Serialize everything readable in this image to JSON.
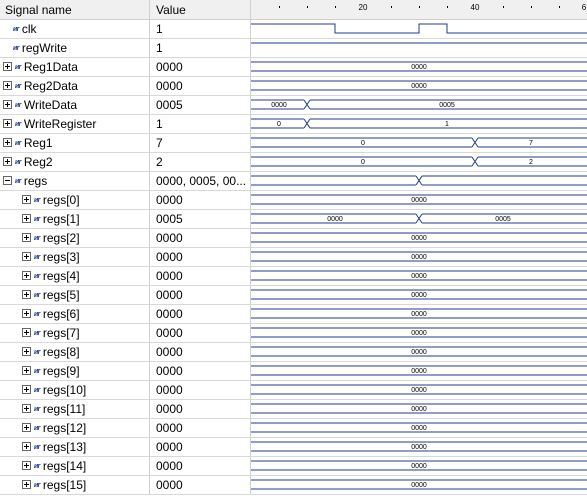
{
  "header": {
    "signal_name": "Signal name",
    "value": "Value"
  },
  "timeline": {
    "ticks": [
      "20",
      "40",
      "6"
    ]
  },
  "colors": {
    "wave": "#1f3b8f",
    "grid": "#d8d8d8"
  },
  "signals": [
    {
      "name": "clk",
      "value": "1",
      "expandable": false,
      "expanded": false,
      "indent": 0
    },
    {
      "name": "regWrite",
      "value": "1",
      "expandable": false,
      "expanded": false,
      "indent": 0
    },
    {
      "name": "Reg1Data",
      "value": "0000",
      "expandable": true,
      "expanded": false,
      "indent": 0
    },
    {
      "name": "Reg2Data",
      "value": "0000",
      "expandable": true,
      "expanded": false,
      "indent": 0
    },
    {
      "name": "WriteData",
      "value": "0005",
      "expandable": true,
      "expanded": false,
      "indent": 0
    },
    {
      "name": "WriteRegister",
      "value": "1",
      "expandable": true,
      "expanded": false,
      "indent": 0
    },
    {
      "name": "Reg1",
      "value": "7",
      "expandable": true,
      "expanded": false,
      "indent": 0
    },
    {
      "name": "Reg2",
      "value": "2",
      "expandable": true,
      "expanded": false,
      "indent": 0
    },
    {
      "name": "regs",
      "value": "0000, 0005, 00...",
      "expandable": true,
      "expanded": true,
      "indent": 0
    },
    {
      "name": "regs[0]",
      "value": "0000",
      "expandable": true,
      "expanded": false,
      "indent": 1
    },
    {
      "name": "regs[1]",
      "value": "0005",
      "expandable": true,
      "expanded": false,
      "indent": 1
    },
    {
      "name": "regs[2]",
      "value": "0000",
      "expandable": true,
      "expanded": false,
      "indent": 1
    },
    {
      "name": "regs[3]",
      "value": "0000",
      "expandable": true,
      "expanded": false,
      "indent": 1
    },
    {
      "name": "regs[4]",
      "value": "0000",
      "expandable": true,
      "expanded": false,
      "indent": 1
    },
    {
      "name": "regs[5]",
      "value": "0000",
      "expandable": true,
      "expanded": false,
      "indent": 1
    },
    {
      "name": "regs[6]",
      "value": "0000",
      "expandable": true,
      "expanded": false,
      "indent": 1
    },
    {
      "name": "regs[7]",
      "value": "0000",
      "expandable": true,
      "expanded": false,
      "indent": 1
    },
    {
      "name": "regs[8]",
      "value": "0000",
      "expandable": true,
      "expanded": false,
      "indent": 1
    },
    {
      "name": "regs[9]",
      "value": "0000",
      "expandable": true,
      "expanded": false,
      "indent": 1
    },
    {
      "name": "regs[10]",
      "value": "0000",
      "expandable": true,
      "expanded": false,
      "indent": 1
    },
    {
      "name": "regs[11]",
      "value": "0000",
      "expandable": true,
      "expanded": false,
      "indent": 1
    },
    {
      "name": "regs[12]",
      "value": "0000",
      "expandable": true,
      "expanded": false,
      "indent": 1
    },
    {
      "name": "regs[13]",
      "value": "0000",
      "expandable": true,
      "expanded": false,
      "indent": 1
    },
    {
      "name": "regs[14]",
      "value": "0000",
      "expandable": true,
      "expanded": false,
      "indent": 1
    },
    {
      "name": "regs[15]",
      "value": "0000",
      "expandable": true,
      "expanded": false,
      "indent": 1
    }
  ],
  "waveforms": [
    {
      "type": "clock",
      "segments": [
        {
          "t0": 0,
          "t1": 15,
          "v": 1
        },
        {
          "t0": 15,
          "t1": 30,
          "v": 0
        },
        {
          "t0": 30,
          "t1": 35,
          "v": 1
        },
        {
          "t0": 35,
          "t1": 60,
          "v": 0
        }
      ]
    },
    {
      "type": "level",
      "level": 1
    },
    {
      "type": "bus",
      "segments": [
        {
          "t0": 0,
          "t1": 60,
          "label": "0000"
        }
      ]
    },
    {
      "type": "bus",
      "segments": [
        {
          "t0": 0,
          "t1": 60,
          "label": "0000"
        }
      ]
    },
    {
      "type": "bus",
      "segments": [
        {
          "t0": 0,
          "t1": 10,
          "label": "0000"
        },
        {
          "t0": 10,
          "t1": 60,
          "label": "0005"
        }
      ]
    },
    {
      "type": "bus",
      "segments": [
        {
          "t0": 0,
          "t1": 10,
          "label": "0"
        },
        {
          "t0": 10,
          "t1": 60,
          "label": "1"
        }
      ]
    },
    {
      "type": "bus",
      "segments": [
        {
          "t0": 0,
          "t1": 40,
          "label": "0"
        },
        {
          "t0": 40,
          "t1": 60,
          "label": "7"
        }
      ]
    },
    {
      "type": "bus",
      "segments": [
        {
          "t0": 0,
          "t1": 40,
          "label": "0"
        },
        {
          "t0": 40,
          "t1": 60,
          "label": "2"
        }
      ]
    },
    {
      "type": "bus",
      "segments": [
        {
          "t0": 0,
          "t1": 30,
          "label": ""
        },
        {
          "t0": 30,
          "t1": 60,
          "label": ""
        }
      ]
    },
    {
      "type": "bus",
      "segments": [
        {
          "t0": 0,
          "t1": 60,
          "label": "0000"
        }
      ]
    },
    {
      "type": "bus",
      "segments": [
        {
          "t0": 0,
          "t1": 30,
          "label": "0000"
        },
        {
          "t0": 30,
          "t1": 60,
          "label": "0005"
        }
      ]
    },
    {
      "type": "bus",
      "segments": [
        {
          "t0": 0,
          "t1": 60,
          "label": "0000"
        }
      ]
    },
    {
      "type": "bus",
      "segments": [
        {
          "t0": 0,
          "t1": 60,
          "label": "0000"
        }
      ]
    },
    {
      "type": "bus",
      "segments": [
        {
          "t0": 0,
          "t1": 60,
          "label": "0000"
        }
      ]
    },
    {
      "type": "bus",
      "segments": [
        {
          "t0": 0,
          "t1": 60,
          "label": "0000"
        }
      ]
    },
    {
      "type": "bus",
      "segments": [
        {
          "t0": 0,
          "t1": 60,
          "label": "0000"
        }
      ]
    },
    {
      "type": "bus",
      "segments": [
        {
          "t0": 0,
          "t1": 60,
          "label": "0000"
        }
      ]
    },
    {
      "type": "bus",
      "segments": [
        {
          "t0": 0,
          "t1": 60,
          "label": "0000"
        }
      ]
    },
    {
      "type": "bus",
      "segments": [
        {
          "t0": 0,
          "t1": 60,
          "label": "0000"
        }
      ]
    },
    {
      "type": "bus",
      "segments": [
        {
          "t0": 0,
          "t1": 60,
          "label": "0000"
        }
      ]
    },
    {
      "type": "bus",
      "segments": [
        {
          "t0": 0,
          "t1": 60,
          "label": "0000"
        }
      ]
    },
    {
      "type": "bus",
      "segments": [
        {
          "t0": 0,
          "t1": 60,
          "label": "0000"
        }
      ]
    },
    {
      "type": "bus",
      "segments": [
        {
          "t0": 0,
          "t1": 60,
          "label": "0000"
        }
      ]
    },
    {
      "type": "bus",
      "segments": [
        {
          "t0": 0,
          "t1": 60,
          "label": "0000"
        }
      ]
    },
    {
      "type": "bus",
      "segments": [
        {
          "t0": 0,
          "t1": 60,
          "label": "0000"
        }
      ]
    }
  ]
}
